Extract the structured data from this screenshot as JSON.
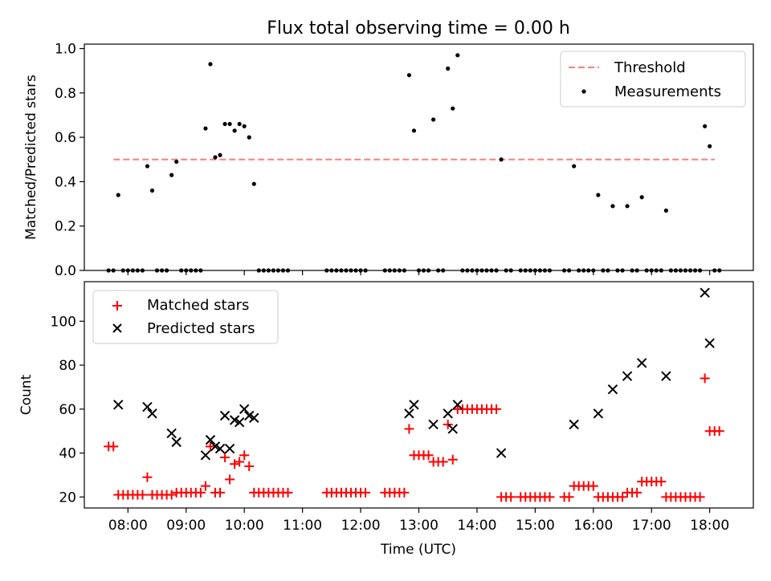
{
  "chart_data": [
    {
      "type": "scatter",
      "title": "Flux total observing time = 0.00 h",
      "xlabel": "",
      "ylabel": "Matched/Predicted stars",
      "ylim": [
        0,
        1.02
      ],
      "yticks": [
        "0.0",
        "0.2",
        "0.4",
        "0.6",
        "0.8",
        "1.0"
      ],
      "legend_position": "top-right",
      "legend": [
        "Threshold",
        "Measurements"
      ],
      "threshold": {
        "name": "Threshold",
        "value": 0.5,
        "x_range": [
          "07:45",
          "18:05"
        ],
        "color": "#ff7f7f"
      },
      "series": [
        {
          "name": "Measurements",
          "color": "#000000",
          "points": [
            [
              "07:40",
              0.0
            ],
            [
              "07:45",
              0.0
            ],
            [
              "07:50",
              0.34
            ],
            [
              "07:55",
              0.0
            ],
            [
              "08:00",
              0.0
            ],
            [
              "08:05",
              0.0
            ],
            [
              "08:10",
              0.0
            ],
            [
              "08:15",
              0.0
            ],
            [
              "08:20",
              0.47
            ],
            [
              "08:25",
              0.36
            ],
            [
              "08:30",
              0.0
            ],
            [
              "08:35",
              0.0
            ],
            [
              "08:40",
              0.0
            ],
            [
              "08:45",
              0.43
            ],
            [
              "08:50",
              0.49
            ],
            [
              "08:55",
              0.0
            ],
            [
              "09:00",
              0.0
            ],
            [
              "09:05",
              0.0
            ],
            [
              "09:10",
              0.0
            ],
            [
              "09:15",
              0.0
            ],
            [
              "09:20",
              0.64
            ],
            [
              "09:25",
              0.93
            ],
            [
              "09:30",
              0.51
            ],
            [
              "09:35",
              0.52
            ],
            [
              "09:40",
              0.66
            ],
            [
              "09:45",
              0.66
            ],
            [
              "09:50",
              0.63
            ],
            [
              "09:55",
              0.66
            ],
            [
              "10:00",
              0.65
            ],
            [
              "10:05",
              0.6
            ],
            [
              "10:10",
              0.39
            ],
            [
              "10:15",
              0.0
            ],
            [
              "10:20",
              0.0
            ],
            [
              "10:25",
              0.0
            ],
            [
              "10:30",
              0.0
            ],
            [
              "10:35",
              0.0
            ],
            [
              "10:40",
              0.0
            ],
            [
              "10:45",
              0.0
            ],
            [
              "11:25",
              0.0
            ],
            [
              "11:30",
              0.0
            ],
            [
              "11:35",
              0.0
            ],
            [
              "11:40",
              0.0
            ],
            [
              "11:45",
              0.0
            ],
            [
              "11:50",
              0.0
            ],
            [
              "11:55",
              0.0
            ],
            [
              "12:00",
              0.0
            ],
            [
              "12:05",
              0.0
            ],
            [
              "12:25",
              0.0
            ],
            [
              "12:30",
              0.0
            ],
            [
              "12:35",
              0.0
            ],
            [
              "12:40",
              0.0
            ],
            [
              "12:45",
              0.0
            ],
            [
              "12:50",
              0.88
            ],
            [
              "12:55",
              0.63
            ],
            [
              "13:00",
              0.0
            ],
            [
              "13:05",
              0.0
            ],
            [
              "13:10",
              0.0
            ],
            [
              "13:15",
              0.68
            ],
            [
              "13:20",
              0.0
            ],
            [
              "13:25",
              0.0
            ],
            [
              "13:30",
              0.91
            ],
            [
              "13:35",
              0.73
            ],
            [
              "13:40",
              0.97
            ],
            [
              "13:45",
              0.0
            ],
            [
              "13:50",
              0.0
            ],
            [
              "13:55",
              0.0
            ],
            [
              "14:00",
              0.0
            ],
            [
              "14:05",
              0.0
            ],
            [
              "14:10",
              0.0
            ],
            [
              "14:15",
              0.0
            ],
            [
              "14:20",
              0.0
            ],
            [
              "14:25",
              0.5
            ],
            [
              "14:30",
              0.0
            ],
            [
              "14:35",
              0.0
            ],
            [
              "14:45",
              0.0
            ],
            [
              "14:50",
              0.0
            ],
            [
              "14:55",
              0.0
            ],
            [
              "15:00",
              0.0
            ],
            [
              "15:05",
              0.0
            ],
            [
              "15:10",
              0.0
            ],
            [
              "15:15",
              0.0
            ],
            [
              "15:30",
              0.0
            ],
            [
              "15:35",
              0.0
            ],
            [
              "15:40",
              0.47
            ],
            [
              "15:45",
              0.0
            ],
            [
              "15:50",
              0.0
            ],
            [
              "15:55",
              0.0
            ],
            [
              "16:00",
              0.0
            ],
            [
              "16:05",
              0.34
            ],
            [
              "16:10",
              0.0
            ],
            [
              "16:15",
              0.0
            ],
            [
              "16:20",
              0.29
            ],
            [
              "16:25",
              0.0
            ],
            [
              "16:30",
              0.0
            ],
            [
              "16:35",
              0.29
            ],
            [
              "16:40",
              0.0
            ],
            [
              "16:45",
              0.0
            ],
            [
              "16:50",
              0.33
            ],
            [
              "16:55",
              0.0
            ],
            [
              "17:00",
              0.0
            ],
            [
              "17:05",
              0.0
            ],
            [
              "17:10",
              0.0
            ],
            [
              "17:15",
              0.27
            ],
            [
              "17:20",
              0.0
            ],
            [
              "17:25",
              0.0
            ],
            [
              "17:30",
              0.0
            ],
            [
              "17:35",
              0.0
            ],
            [
              "17:40",
              0.0
            ],
            [
              "17:45",
              0.0
            ],
            [
              "17:50",
              0.0
            ],
            [
              "17:55",
              0.65
            ],
            [
              "18:00",
              0.56
            ],
            [
              "18:05",
              0.0
            ],
            [
              "18:10",
              0.0
            ]
          ]
        }
      ]
    },
    {
      "type": "scatter",
      "title": "",
      "xlabel": "Time (UTC)",
      "ylabel": "Count",
      "ylim": [
        15,
        118
      ],
      "yticks": [
        "20",
        "40",
        "60",
        "80",
        "100"
      ],
      "xlim": [
        "07:15",
        "18:45"
      ],
      "xticks": [
        "08:00",
        "09:00",
        "10:00",
        "11:00",
        "12:00",
        "13:00",
        "14:00",
        "15:00",
        "16:00",
        "17:00",
        "18:00"
      ],
      "legend_position": "top-left",
      "legend": [
        "Matched stars",
        "Predicted stars"
      ],
      "series": [
        {
          "name": "Matched stars",
          "marker": "+",
          "color": "#ff0000",
          "points": [
            [
              "07:40",
              43
            ],
            [
              "07:45",
              43
            ],
            [
              "07:50",
              21
            ],
            [
              "07:55",
              21
            ],
            [
              "08:00",
              21
            ],
            [
              "08:05",
              21
            ],
            [
              "08:10",
              21
            ],
            [
              "08:15",
              21
            ],
            [
              "08:20",
              29
            ],
            [
              "08:25",
              21
            ],
            [
              "08:30",
              21
            ],
            [
              "08:35",
              21
            ],
            [
              "08:40",
              21
            ],
            [
              "08:45",
              21
            ],
            [
              "08:50",
              22
            ],
            [
              "08:55",
              22
            ],
            [
              "09:00",
              22
            ],
            [
              "09:05",
              22
            ],
            [
              "09:10",
              22
            ],
            [
              "09:15",
              22
            ],
            [
              "09:20",
              25
            ],
            [
              "09:25",
              43
            ],
            [
              "09:30",
              22
            ],
            [
              "09:35",
              22
            ],
            [
              "09:40",
              38
            ],
            [
              "09:45",
              28
            ],
            [
              "09:50",
              35
            ],
            [
              "09:55",
              36
            ],
            [
              "10:00",
              39
            ],
            [
              "10:05",
              34
            ],
            [
              "10:10",
              22
            ],
            [
              "10:15",
              22
            ],
            [
              "10:20",
              22
            ],
            [
              "10:25",
              22
            ],
            [
              "10:30",
              22
            ],
            [
              "10:35",
              22
            ],
            [
              "10:40",
              22
            ],
            [
              "10:45",
              22
            ],
            [
              "11:25",
              22
            ],
            [
              "11:30",
              22
            ],
            [
              "11:35",
              22
            ],
            [
              "11:40",
              22
            ],
            [
              "11:45",
              22
            ],
            [
              "11:50",
              22
            ],
            [
              "11:55",
              22
            ],
            [
              "12:00",
              22
            ],
            [
              "12:05",
              22
            ],
            [
              "12:25",
              22
            ],
            [
              "12:30",
              22
            ],
            [
              "12:35",
              22
            ],
            [
              "12:40",
              22
            ],
            [
              "12:45",
              22
            ],
            [
              "12:50",
              51
            ],
            [
              "12:55",
              39
            ],
            [
              "13:00",
              39
            ],
            [
              "13:05",
              39
            ],
            [
              "13:10",
              39
            ],
            [
              "13:15",
              36
            ],
            [
              "13:20",
              36
            ],
            [
              "13:25",
              36
            ],
            [
              "13:30",
              53
            ],
            [
              "13:35",
              37
            ],
            [
              "13:40",
              60
            ],
            [
              "13:45",
              60
            ],
            [
              "13:50",
              60
            ],
            [
              "13:55",
              60
            ],
            [
              "14:00",
              60
            ],
            [
              "14:05",
              60
            ],
            [
              "14:10",
              60
            ],
            [
              "14:15",
              60
            ],
            [
              "14:20",
              60
            ],
            [
              "14:25",
              20
            ],
            [
              "14:30",
              20
            ],
            [
              "14:35",
              20
            ],
            [
              "14:45",
              20
            ],
            [
              "14:50",
              20
            ],
            [
              "14:55",
              20
            ],
            [
              "15:00",
              20
            ],
            [
              "15:05",
              20
            ],
            [
              "15:10",
              20
            ],
            [
              "15:15",
              20
            ],
            [
              "15:30",
              20
            ],
            [
              "15:35",
              20
            ],
            [
              "15:40",
              25
            ],
            [
              "15:45",
              25
            ],
            [
              "15:50",
              25
            ],
            [
              "15:55",
              25
            ],
            [
              "16:00",
              25
            ],
            [
              "16:05",
              20
            ],
            [
              "16:10",
              20
            ],
            [
              "16:15",
              20
            ],
            [
              "16:20",
              20
            ],
            [
              "16:25",
              20
            ],
            [
              "16:30",
              20
            ],
            [
              "16:35",
              22
            ],
            [
              "16:40",
              22
            ],
            [
              "16:45",
              22
            ],
            [
              "16:50",
              27
            ],
            [
              "16:55",
              27
            ],
            [
              "17:00",
              27
            ],
            [
              "17:05",
              27
            ],
            [
              "17:10",
              27
            ],
            [
              "17:15",
              20
            ],
            [
              "17:20",
              20
            ],
            [
              "17:25",
              20
            ],
            [
              "17:30",
              20
            ],
            [
              "17:35",
              20
            ],
            [
              "17:40",
              20
            ],
            [
              "17:45",
              20
            ],
            [
              "17:50",
              20
            ],
            [
              "17:55",
              74
            ],
            [
              "18:00",
              50
            ],
            [
              "18:05",
              50
            ],
            [
              "18:10",
              50
            ]
          ]
        },
        {
          "name": "Predicted stars",
          "marker": "x",
          "color": "#000000",
          "points": [
            [
              "07:50",
              62
            ],
            [
              "08:20",
              61
            ],
            [
              "08:25",
              58
            ],
            [
              "08:45",
              49
            ],
            [
              "08:50",
              45
            ],
            [
              "09:20",
              39
            ],
            [
              "09:25",
              46
            ],
            [
              "09:30",
              43
            ],
            [
              "09:35",
              42
            ],
            [
              "09:40",
              57
            ],
            [
              "09:45",
              42
            ],
            [
              "09:50",
              55
            ],
            [
              "09:55",
              54
            ],
            [
              "10:00",
              60
            ],
            [
              "10:05",
              57
            ],
            [
              "10:10",
              56
            ],
            [
              "12:50",
              58
            ],
            [
              "12:55",
              62
            ],
            [
              "13:15",
              53
            ],
            [
              "13:30",
              58
            ],
            [
              "13:35",
              51
            ],
            [
              "13:40",
              62
            ],
            [
              "14:25",
              40
            ],
            [
              "15:40",
              53
            ],
            [
              "16:05",
              58
            ],
            [
              "16:20",
              69
            ],
            [
              "16:35",
              75
            ],
            [
              "16:50",
              81
            ],
            [
              "17:15",
              75
            ],
            [
              "17:55",
              113
            ],
            [
              "18:00",
              90
            ]
          ]
        }
      ]
    }
  ]
}
